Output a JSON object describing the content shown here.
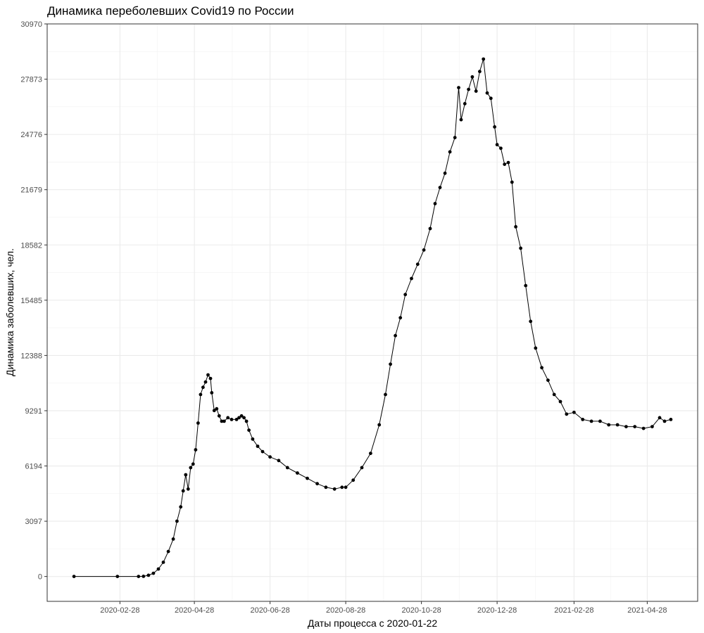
{
  "chart_data": {
    "type": "line",
    "title": "Динамика переболевших Covid19 по России",
    "xlabel": "Даты процесса с 2020-01-22",
    "ylabel": "Динамика заболевших, чел.",
    "x_range": [
      "2020-01-22",
      "2021-05-17"
    ],
    "ylim": [
      0,
      30970
    ],
    "y_ticks": [
      0,
      3097,
      6194,
      9291,
      12388,
      15485,
      18582,
      21679,
      24776,
      27873,
      30970
    ],
    "x_ticks": [
      "2020-02-28",
      "2020-04-28",
      "2020-06-28",
      "2020-08-28",
      "2020-10-28",
      "2020-12-28",
      "2021-02-28",
      "2021-04-28"
    ],
    "grid": true,
    "markers": "points",
    "series_color": "#000000",
    "series": [
      {
        "x": [
          "2020-01-22",
          "2020-02-26",
          "2020-03-14",
          "2020-03-18",
          "2020-03-22",
          "2020-03-26",
          "2020-03-30",
          "2020-04-03",
          "2020-04-07",
          "2020-04-11",
          "2020-04-14",
          "2020-04-17",
          "2020-04-19",
          "2020-04-21",
          "2020-04-23",
          "2020-04-25",
          "2020-04-27",
          "2020-04-29",
          "2020-05-01",
          "2020-05-03",
          "2020-05-05",
          "2020-05-07",
          "2020-05-09",
          "2020-05-11",
          "2020-05-12",
          "2020-05-14",
          "2020-05-16",
          "2020-05-18",
          "2020-05-20",
          "2020-05-22",
          "2020-05-25",
          "2020-05-28",
          "2020-06-01",
          "2020-06-03",
          "2020-06-05",
          "2020-06-07",
          "2020-06-09",
          "2020-06-11",
          "2020-06-14",
          "2020-06-18",
          "2020-06-22",
          "2020-06-28",
          "2020-07-05",
          "2020-07-12",
          "2020-07-20",
          "2020-07-28",
          "2020-08-05",
          "2020-08-12",
          "2020-08-19",
          "2020-08-25",
          "2020-08-28",
          "2020-09-03",
          "2020-09-10",
          "2020-09-17",
          "2020-09-24",
          "2020-09-29",
          "2020-10-03",
          "2020-10-07",
          "2020-10-11",
          "2020-10-15",
          "2020-10-20",
          "2020-10-25",
          "2020-10-30",
          "2020-11-04",
          "2020-11-08",
          "2020-11-12",
          "2020-11-16",
          "2020-11-20",
          "2020-11-24",
          "2020-11-27",
          "2020-11-29",
          "2020-12-02",
          "2020-12-05",
          "2020-12-08",
          "2020-12-11",
          "2020-12-14",
          "2020-12-17",
          "2020-12-20",
          "2020-12-23",
          "2020-12-26",
          "2020-12-28",
          "2020-12-31",
          "2021-01-03",
          "2021-01-06",
          "2021-01-09",
          "2021-01-12",
          "2021-01-16",
          "2021-01-20",
          "2021-01-24",
          "2021-01-28",
          "2021-02-02",
          "2021-02-07",
          "2021-02-12",
          "2021-02-17",
          "2021-02-22",
          "2021-02-28",
          "2021-03-07",
          "2021-03-14",
          "2021-03-21",
          "2021-03-28",
          "2021-04-04",
          "2021-04-11",
          "2021-04-18",
          "2021-04-25",
          "2021-05-02",
          "2021-05-08",
          "2021-05-12",
          "2021-05-17"
        ],
        "values": [
          0,
          0,
          0,
          10,
          70,
          180,
          420,
          800,
          1400,
          2100,
          3100,
          3900,
          4800,
          5700,
          4900,
          6100,
          6300,
          7100,
          8600,
          10200,
          10600,
          10900,
          11300,
          11100,
          10300,
          9300,
          9400,
          9000,
          8700,
          8700,
          8900,
          8800,
          8800,
          8900,
          9000,
          8900,
          8700,
          8200,
          7700,
          7300,
          7000,
          6700,
          6500,
          6100,
          5800,
          5500,
          5200,
          5000,
          4900,
          5000,
          5000,
          5400,
          6100,
          6900,
          8500,
          10200,
          11900,
          13500,
          14500,
          15800,
          16700,
          17500,
          18300,
          19500,
          20900,
          21800,
          22600,
          23800,
          24600,
          27400,
          25600,
          26500,
          27300,
          28000,
          27200,
          28300,
          29000,
          27100,
          26800,
          25200,
          24200,
          24000,
          23100,
          23200,
          22100,
          19600,
          18400,
          16300,
          14300,
          12800,
          11700,
          11000,
          10200,
          9800,
          9100,
          9200,
          8800,
          8700,
          8700,
          8500,
          8500,
          8400,
          8400,
          8300,
          8400,
          8900,
          8700,
          8800
        ]
      }
    ]
  }
}
